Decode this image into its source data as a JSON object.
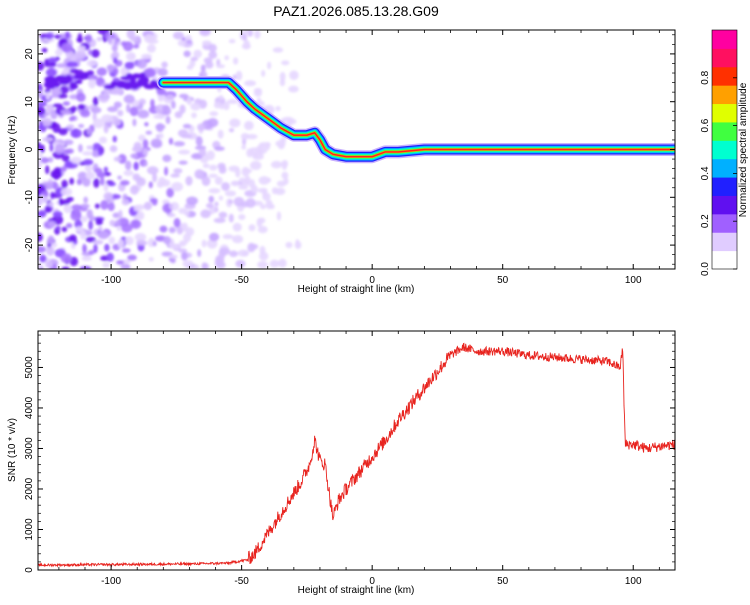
{
  "chart_data": [
    {
      "type": "heatmap",
      "title": "PAZ1.2026.085.13.28.G09",
      "xlabel": "Height of straight line (km)",
      "ylabel": "Frequency (Hz)",
      "xlim": [
        -128,
        116
      ],
      "ylim": [
        -25,
        25
      ],
      "xticks": [
        -100,
        -50,
        0,
        50,
        100
      ],
      "yticks": [
        -20,
        -10,
        0,
        10,
        20
      ],
      "colorbar": {
        "label": "Normalized spectral amplitude",
        "range": [
          0,
          1
        ],
        "ticks": [
          "0.0",
          "0.2",
          "0.4",
          "0.6",
          "0.8"
        ],
        "tick_values": [
          0.0,
          0.2,
          0.4,
          0.6,
          0.8
        ],
        "colors": [
          "#ffffff",
          "#e0ccff",
          "#a060ff",
          "#6010f0",
          "#2020ff",
          "#00b0ff",
          "#00ffd0",
          "#40ff40",
          "#e0ff00",
          "#ffa000",
          "#ff3000",
          "#ff1060",
          "#ff00a0"
        ]
      },
      "ridge": {
        "x": [
          -80,
          -70,
          -60,
          -55,
          -52,
          -48,
          -45,
          -40,
          -35,
          -30,
          -25,
          -22,
          -20,
          -18,
          -15,
          -10,
          -5,
          0,
          5,
          10,
          20,
          30,
          40,
          50,
          60,
          70,
          80,
          90,
          100,
          110,
          116
        ],
        "freq": [
          14,
          14,
          14,
          14,
          12.5,
          10,
          8.5,
          6.5,
          4.5,
          3,
          3,
          3.5,
          2,
          0,
          -1,
          -1.5,
          -1.5,
          -1.5,
          -0.5,
          -0.5,
          0,
          0,
          0,
          0,
          0,
          0,
          0,
          0,
          0,
          0,
          0
        ]
      }
    },
    {
      "type": "line",
      "xlabel": "Height of straight line (km)",
      "ylabel": "SNR (10 * v/v)",
      "xlim": [
        -128,
        116
      ],
      "ylim": [
        0,
        5900
      ],
      "xticks": [
        -100,
        -50,
        0,
        50,
        100
      ],
      "yticks": [
        0,
        1000,
        2000,
        3000,
        4000,
        5000
      ],
      "series": [
        {
          "name": "SNR",
          "color": "#e8241f",
          "x": [
            -128,
            -110,
            -90,
            -70,
            -55,
            -48,
            -45,
            -42,
            -38,
            -34,
            -30,
            -27,
            -24,
            -22,
            -20,
            -18,
            -16,
            -15,
            -13,
            -10,
            -5,
            0,
            5,
            10,
            15,
            20,
            25,
            30,
            35,
            40,
            50,
            60,
            70,
            80,
            90,
            95,
            96,
            96.5,
            97,
            100,
            105,
            110,
            116
          ],
          "y": [
            120,
            130,
            140,
            150,
            170,
            250,
            400,
            700,
            1100,
            1500,
            1900,
            2200,
            2600,
            3200,
            2700,
            2600,
            1700,
            1300,
            1700,
            2000,
            2400,
            2800,
            3200,
            3700,
            4100,
            4500,
            4900,
            5300,
            5500,
            5400,
            5400,
            5300,
            5250,
            5200,
            5150,
            5000,
            5500,
            4000,
            3100,
            3100,
            3000,
            3050,
            3100
          ]
        }
      ]
    }
  ]
}
